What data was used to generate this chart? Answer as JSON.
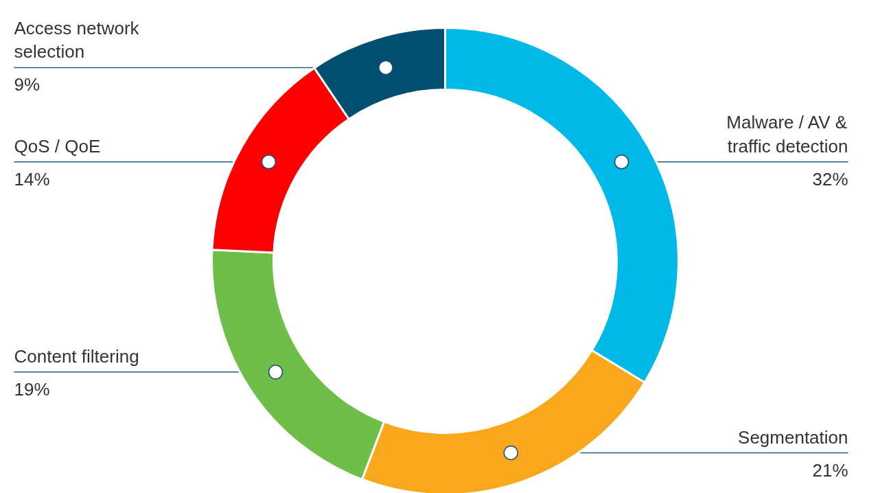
{
  "chart_data": {
    "type": "donut",
    "categories": [
      "Malware / AV & traffic detection",
      "Segmentation",
      "Content filtering",
      "QoS / QoE",
      "Access network selection"
    ],
    "values": [
      32,
      21,
      19,
      14,
      9
    ],
    "colors": [
      "#00b9e8",
      "#f9a81b",
      "#6fbe4a",
      "#ff0000",
      "#004f71"
    ],
    "value_labels": [
      "32%",
      "21%",
      "19%",
      "14%",
      "9%"
    ]
  }
}
